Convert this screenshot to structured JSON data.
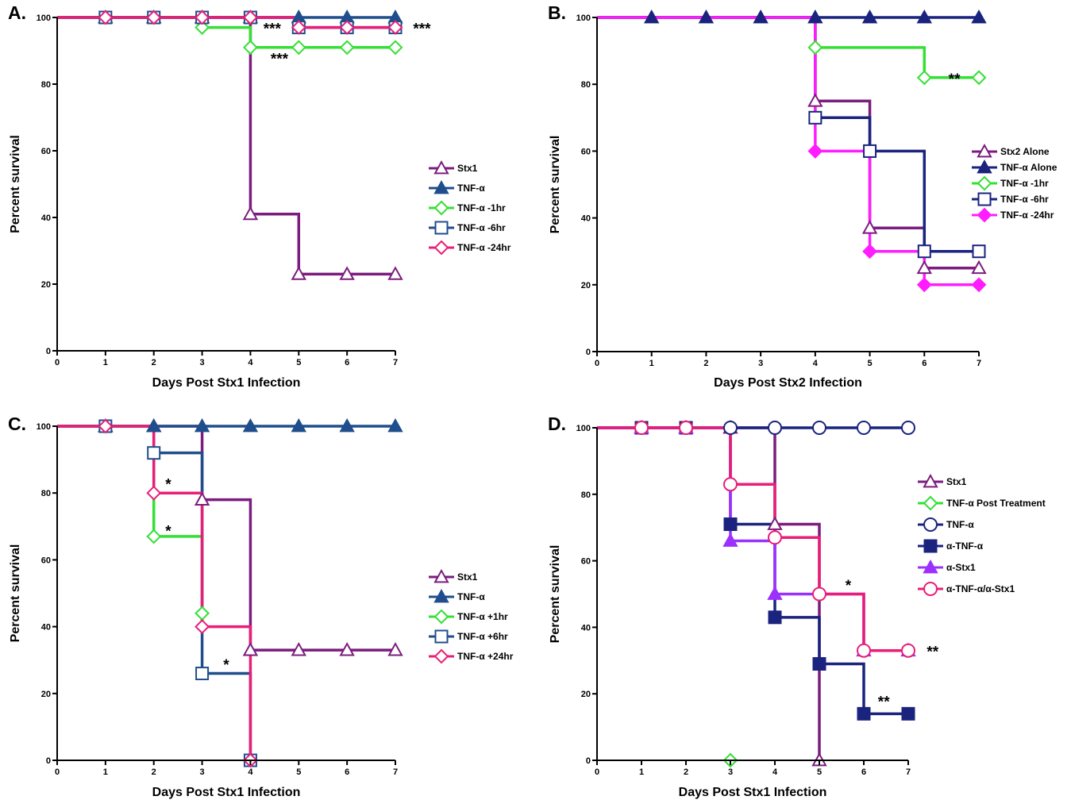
{
  "chart_data": [
    {
      "panel": "A.",
      "type": "line",
      "step": true,
      "xlabel": "Days Post Stx1 Infection",
      "ylabel": "Percent survival",
      "xlim": [
        0,
        7
      ],
      "ylim": [
        0,
        100
      ],
      "xticks": [
        "0",
        "1",
        "2",
        "3",
        "4",
        "5",
        "6",
        "7"
      ],
      "yticks": [
        "0",
        "20",
        "40",
        "60",
        "80",
        "100"
      ],
      "grid": false,
      "legend_position": "right",
      "series": [
        {
          "name": "Stx1",
          "color": "#7B1C7E",
          "marker": "triangle-open",
          "x": [
            0,
            1,
            2,
            3,
            4,
            5,
            6,
            7
          ],
          "y": [
            100,
            100,
            100,
            100,
            41,
            23,
            23,
            23
          ]
        },
        {
          "name": "TNF-α",
          "color": "#1F4E8C",
          "marker": "triangle-filled",
          "x": [
            0,
            1,
            2,
            3,
            4,
            5,
            6,
            7
          ],
          "y": [
            100,
            100,
            100,
            100,
            100,
            100,
            100,
            100
          ]
        },
        {
          "name": "TNF-α -1hr",
          "color": "#33E033",
          "marker": "diamond-open",
          "x": [
            0,
            1,
            2,
            3,
            4,
            5,
            6,
            7
          ],
          "y": [
            100,
            100,
            100,
            97,
            91,
            91,
            91,
            91
          ]
        },
        {
          "name": "TNF-α -6hr",
          "color": "#1F4E8C",
          "marker": "square-open",
          "x": [
            0,
            1,
            2,
            3,
            4,
            5,
            6,
            7
          ],
          "y": [
            100,
            100,
            100,
            100,
            100,
            97,
            97,
            97
          ]
        },
        {
          "name": "TNF-α -24hr",
          "color": "#E81E78",
          "marker": "diamond-open",
          "x": [
            0,
            1,
            2,
            3,
            4,
            5,
            6,
            7
          ],
          "y": [
            100,
            100,
            100,
            100,
            100,
            97,
            97,
            97
          ]
        }
      ],
      "annotations": [
        {
          "text": "***",
          "x": 4.45,
          "y": 97
        },
        {
          "text": "***",
          "x": 7.55,
          "y": 97
        },
        {
          "text": "***",
          "x": 4.6,
          "y": 88
        }
      ]
    },
    {
      "panel": "B.",
      "type": "line",
      "step": true,
      "xlabel": "Days Post Stx2 Infection",
      "ylabel": "Percent survival",
      "xlim": [
        0,
        7
      ],
      "ylim": [
        0,
        100
      ],
      "xticks": [
        "0",
        "1",
        "2",
        "3",
        "4",
        "5",
        "6",
        "7"
      ],
      "yticks": [
        "0",
        "20",
        "40",
        "60",
        "80",
        "100"
      ],
      "grid": false,
      "legend_position": "right",
      "series": [
        {
          "name": "Stx2 Alone",
          "color": "#7B1C7E",
          "marker": "triangle-open",
          "x": [
            0,
            4,
            5,
            6,
            7
          ],
          "y": [
            100,
            75,
            37,
            25,
            25
          ]
        },
        {
          "name": "TNF-α Alone",
          "color": "#1A237E",
          "marker": "triangle-filled",
          "x": [
            0,
            1,
            2,
            3,
            4,
            5,
            6,
            7
          ],
          "y": [
            100,
            100,
            100,
            100,
            100,
            100,
            100,
            100
          ]
        },
        {
          "name": "TNF-α -1hr",
          "color": "#33E033",
          "marker": "diamond-open",
          "x": [
            0,
            4,
            6,
            7
          ],
          "y": [
            100,
            91,
            82,
            82
          ]
        },
        {
          "name": "TNF-α -6hr",
          "color": "#1A237E",
          "marker": "square-open",
          "x": [
            0,
            4,
            5,
            6,
            7
          ],
          "y": [
            100,
            70,
            60,
            30,
            30
          ]
        },
        {
          "name": "TNF-α -24hr",
          "color": "#FF1CFF",
          "marker": "diamond-filled",
          "x": [
            0,
            4,
            5,
            6,
            7
          ],
          "y": [
            100,
            60,
            30,
            20,
            20
          ]
        }
      ],
      "annotations": [
        {
          "text": "**",
          "x": 6.55,
          "y": 82
        }
      ]
    },
    {
      "panel": "C.",
      "type": "line",
      "step": true,
      "xlabel": "Days Post Stx1 Infection",
      "ylabel": "Percent survival",
      "xlim": [
        0,
        7
      ],
      "ylim": [
        0,
        100
      ],
      "xticks": [
        "0",
        "1",
        "2",
        "3",
        "4",
        "5",
        "6",
        "7"
      ],
      "yticks": [
        "0",
        "20",
        "40",
        "60",
        "80",
        "100"
      ],
      "grid": false,
      "legend_position": "right",
      "series": [
        {
          "name": "Stx1",
          "color": "#7B1C7E",
          "marker": "triangle-open",
          "x": [
            0,
            1,
            2,
            3,
            4,
            5,
            6,
            7
          ],
          "y": [
            100,
            100,
            100,
            78,
            33,
            33,
            33,
            33
          ]
        },
        {
          "name": "TNF-α",
          "color": "#1F4E8C",
          "marker": "triangle-filled",
          "x": [
            0,
            1,
            2,
            3,
            4,
            5,
            6,
            7
          ],
          "y": [
            100,
            100,
            100,
            100,
            100,
            100,
            100,
            100
          ]
        },
        {
          "name": "TNF-α +1hr",
          "color": "#33E033",
          "marker": "diamond-open",
          "x": [
            0,
            1,
            2,
            3
          ],
          "y": [
            100,
            100,
            67,
            44
          ]
        },
        {
          "name": "TNF-α +6hr",
          "color": "#1F4E8C",
          "marker": "square-open",
          "x": [
            0,
            1,
            2,
            3,
            4
          ],
          "y": [
            100,
            100,
            92,
            26,
            0
          ]
        },
        {
          "name": "TNF-α +24hr",
          "color": "#E81E78",
          "marker": "diamond-open",
          "x": [
            0,
            1,
            2,
            3,
            4
          ],
          "y": [
            100,
            100,
            80,
            40,
            0
          ]
        }
      ],
      "annotations": [
        {
          "text": "*",
          "x": 2.3,
          "y": 83
        },
        {
          "text": "*",
          "x": 2.3,
          "y": 69
        },
        {
          "text": "*",
          "x": 3.5,
          "y": 29
        }
      ]
    },
    {
      "panel": "D.",
      "type": "line",
      "step": true,
      "xlabel": "Days Post Stx1 Infection",
      "ylabel": "Percent survival",
      "xlim": [
        0,
        7
      ],
      "ylim": [
        0,
        100
      ],
      "xticks": [
        "0",
        "1",
        "2",
        "3",
        "4",
        "5",
        "6",
        "7"
      ],
      "yticks": [
        "0",
        "20",
        "40",
        "60",
        "80",
        "100"
      ],
      "grid": false,
      "legend_position": "right",
      "series": [
        {
          "name": "Stx1",
          "color": "#7B1C7E",
          "marker": "triangle-open",
          "x": [
            0,
            1,
            2,
            3,
            4,
            5
          ],
          "y": [
            100,
            100,
            100,
            100,
            71,
            0
          ]
        },
        {
          "name": "TNF-α Post Treatment",
          "color": "#33E033",
          "marker": "diamond-open",
          "x": [
            3
          ],
          "y": [
            0
          ]
        },
        {
          "name": "TNF-α",
          "color": "#1A237E",
          "marker": "circle-open",
          "x": [
            0,
            1,
            2,
            3,
            4,
            5,
            6,
            7
          ],
          "y": [
            100,
            100,
            100,
            100,
            100,
            100,
            100,
            100
          ]
        },
        {
          "name": "α-TNF-α",
          "color": "#1A237E",
          "marker": "square-filled",
          "x": [
            0,
            1,
            2,
            3,
            4,
            5,
            6,
            7
          ],
          "y": [
            100,
            100,
            100,
            71,
            43,
            29,
            14,
            14
          ]
        },
        {
          "name": "α-Stx1",
          "color": "#9B30FF",
          "marker": "triangle-filled",
          "x": [
            0,
            1,
            2,
            3,
            4,
            6,
            7
          ],
          "y": [
            100,
            100,
            100,
            66,
            50,
            33,
            33
          ]
        },
        {
          "name": "α-TNF-α/α-Stx1",
          "color": "#E81E78",
          "marker": "circle-open",
          "x": [
            0,
            1,
            2,
            3,
            4,
            5,
            6,
            7
          ],
          "y": [
            100,
            100,
            100,
            83,
            67,
            50,
            33,
            33
          ]
        }
      ],
      "annotations": [
        {
          "text": "*",
          "x": 5.65,
          "y": 53
        },
        {
          "text": "**",
          "x": 7.55,
          "y": 33
        },
        {
          "text": "**",
          "x": 6.45,
          "y": 18
        }
      ]
    }
  ]
}
